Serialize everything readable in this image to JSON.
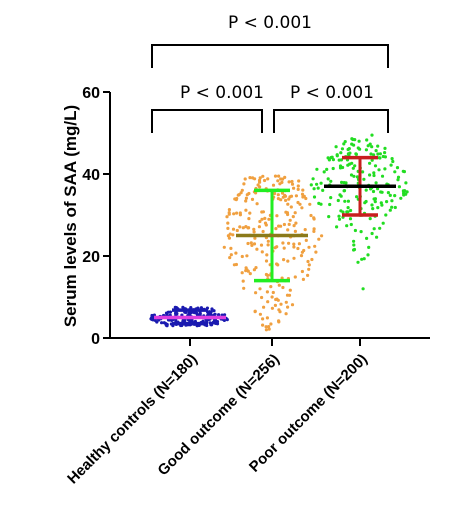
{
  "chart_data": {
    "type": "scatter",
    "ylabel": "Serum levels of SAA (mg/L)",
    "ylim": [
      0,
      60
    ],
    "yticks": [
      0,
      20,
      40,
      60
    ],
    "categories": [
      "Healthy controls (N=180)",
      "Good outcome (N=256)",
      "Poor outcome (N=200)"
    ],
    "groups": [
      {
        "name": "Healthy controls (N=180)",
        "n": 180,
        "point_color": "#1a1ab0",
        "point_range": [
          3.0,
          7.5
        ],
        "center": 5.0,
        "center_color": "#e040e0",
        "err_low": 3.5,
        "err_high": 6.8,
        "err_color": "#1a1ab0"
      },
      {
        "name": "Good outcome (N=256)",
        "n": 256,
        "point_color": "#f0a040",
        "point_range": [
          2.0,
          39.5
        ],
        "center": 25.0,
        "center_color": "#8b7a1a",
        "err_low": 14.0,
        "err_high": 36.0,
        "err_color": "#22ee22"
      },
      {
        "name": "Poor outcome (N=200)",
        "n": 200,
        "point_color": "#22dd22",
        "point_range": [
          12.0,
          49.5
        ],
        "center": 37.0,
        "center_color": "#000000",
        "err_low": 30.0,
        "err_high": 44.0,
        "err_color": "#c81e1e"
      }
    ],
    "comparisons": [
      {
        "pair": [
          0,
          1
        ],
        "label": "P < 0.001"
      },
      {
        "pair": [
          1,
          2
        ],
        "label": "P < 0.001"
      },
      {
        "pair": [
          0,
          2
        ],
        "label": "P < 0.001"
      }
    ]
  }
}
